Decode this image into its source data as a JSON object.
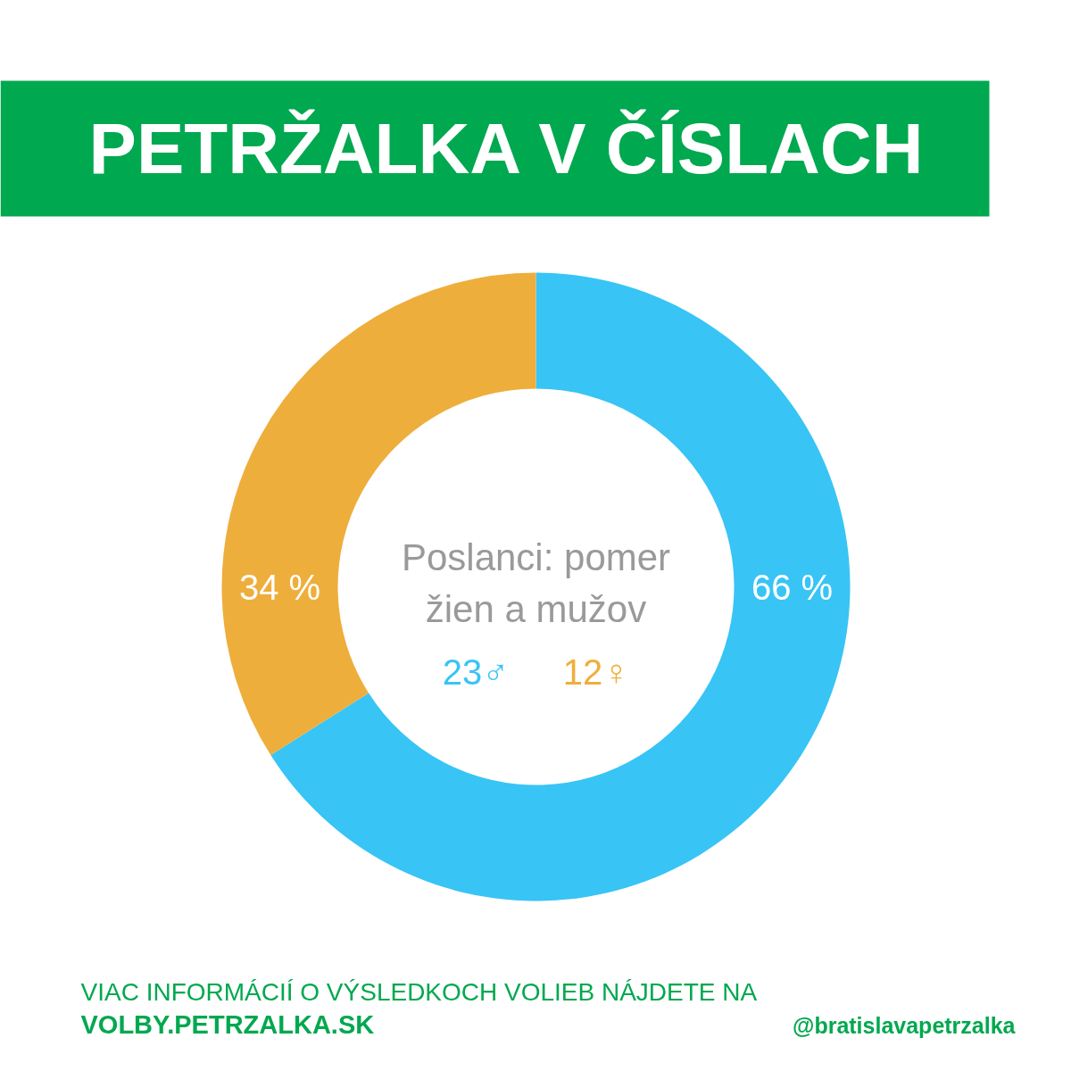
{
  "chart_data": {
    "type": "donut",
    "title": "PETRŽALKA V ČÍSLACH",
    "categories": [
      null,
      null
    ],
    "values": [
      66,
      34
    ],
    "colors": [
      "#38c4f5",
      "#eeae3c"
    ],
    "value_labels": [
      "66 %",
      "34 %"
    ],
    "annotations": [
      "Poslanci: pomer\nžien a mužov",
      "23♂",
      "12♀",
      "VIAC INFORMÁCIÍ O VÝSLEDKOCH VOLIEB NÁJDETE NA",
      "VOLBY.PETRZALKA.SK",
      "@bratislavapetrzalka"
    ]
  }
}
